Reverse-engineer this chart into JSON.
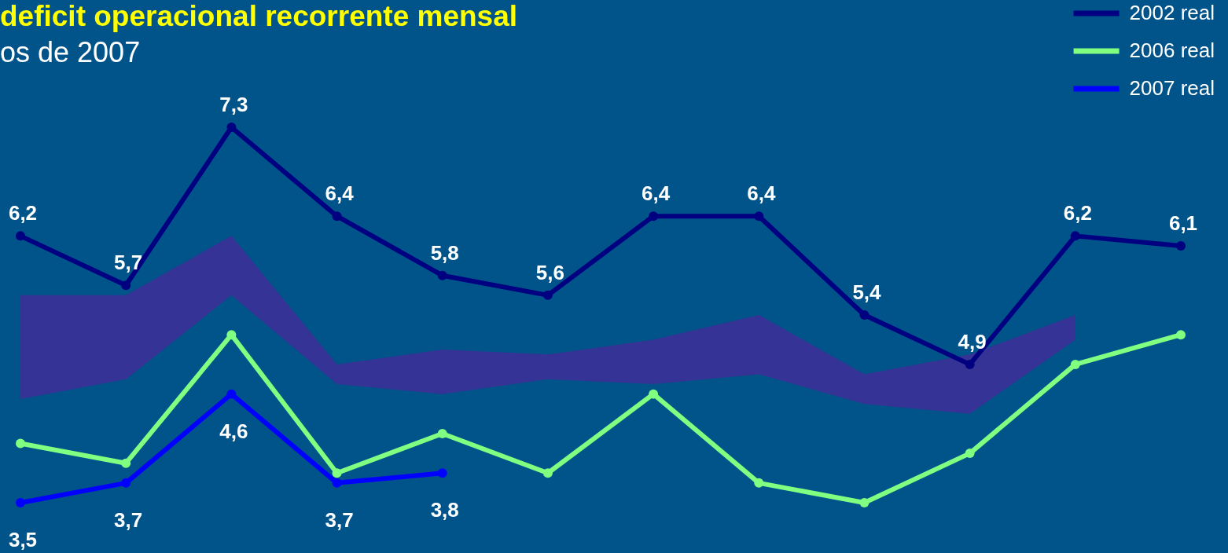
{
  "chart_data": {
    "type": "line",
    "title": "deficit operacional recorrente mensal",
    "subtitle": "os de 2007",
    "categories": [
      null,
      null,
      null,
      null,
      null,
      null,
      null,
      null,
      null,
      null,
      null,
      null
    ],
    "legend": "top right",
    "marker": "circle",
    "line_style": "solid",
    "tick_labels": false,
    "series": [
      {
        "type": "area",
        "color": "#363396",
        "values": [
          null,
          null,
          null,
          null,
          null,
          null,
          null,
          null,
          null,
          null,
          null,
          null
        ],
        "lower": [
          4.55,
          4.75,
          5.6,
          4.7,
          4.6,
          4.75,
          4.7,
          4.8,
          4.5,
          4.4,
          5.15,
          null
        ],
        "upper": [
          5.6,
          5.6,
          6.2,
          4.9,
          5.05,
          5.0,
          5.15,
          5.4,
          4.8,
          5.0,
          5.4,
          null
        ]
      },
      {
        "name": "2002 real",
        "color": "#000080",
        "values": [
          6.2,
          5.7,
          7.3,
          6.4,
          5.8,
          5.6,
          6.4,
          6.4,
          5.4,
          4.9,
          6.2,
          6.1
        ],
        "value_labels": [
          "6,2",
          "5,7",
          "7,3",
          "6,4",
          "5,8",
          "5,6",
          "6,4",
          "6,4",
          "5,4",
          "4,9",
          "6,2",
          "6,1"
        ]
      },
      {
        "name": "2006 real",
        "color": "#80ff80",
        "values": [
          4.1,
          3.9,
          5.2,
          3.8,
          4.2,
          3.8,
          4.6,
          3.7,
          3.5,
          4.0,
          4.9,
          5.2
        ]
      },
      {
        "name": "2007 real",
        "color": "#0000ff",
        "values": [
          3.5,
          3.7,
          4.6,
          3.7,
          3.8,
          null,
          null,
          null,
          null,
          null,
          null,
          null
        ],
        "value_labels": [
          "3,5",
          "3,7",
          "4,6",
          "3,7",
          "3,8",
          null,
          null,
          null,
          null,
          null,
          null,
          null
        ]
      }
    ]
  }
}
